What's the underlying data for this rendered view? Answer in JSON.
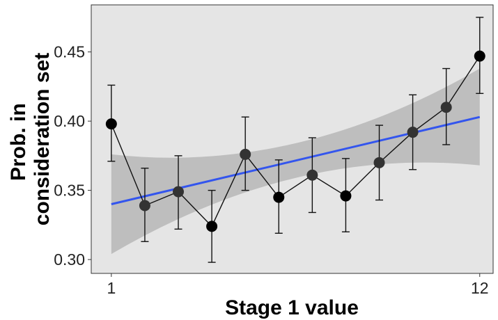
{
  "chart_data": {
    "type": "scatter",
    "title": "",
    "xlabel": "Stage 1 value",
    "ylabel_lines": [
      "Prob. in",
      "consideration set"
    ],
    "xlim": [
      0.4,
      12.4
    ],
    "ylim": [
      0.29,
      0.484
    ],
    "x_ticks": [
      {
        "value": 1,
        "label": "1"
      },
      {
        "value": 12,
        "label": "12"
      }
    ],
    "y_ticks": [
      {
        "value": 0.3,
        "label": "0.30"
      },
      {
        "value": 0.35,
        "label": "0.35"
      },
      {
        "value": 0.4,
        "label": "0.40"
      },
      {
        "value": 0.45,
        "label": "0.45"
      }
    ],
    "grid": false,
    "legend": "none",
    "series": [
      {
        "kind": "points_with_errorbars",
        "x": [
          1,
          2,
          3,
          4,
          5,
          6,
          7,
          8,
          9,
          10,
          11,
          12
        ],
        "y": [
          0.398,
          0.339,
          0.349,
          0.324,
          0.376,
          0.345,
          0.361,
          0.346,
          0.37,
          0.392,
          0.41,
          0.447
        ],
        "y_low": [
          0.371,
          0.313,
          0.322,
          0.298,
          0.35,
          0.319,
          0.334,
          0.32,
          0.343,
          0.365,
          0.383,
          0.42
        ],
        "y_high": [
          0.426,
          0.366,
          0.375,
          0.35,
          0.403,
          0.372,
          0.388,
          0.373,
          0.397,
          0.419,
          0.438,
          0.475
        ],
        "point_colors": [
          "#000000",
          "#333333",
          "#333333",
          "#000000",
          "#333333",
          "#000000",
          "#333333",
          "#000000",
          "#333333",
          "#333333",
          "#333333",
          "#000000"
        ]
      },
      {
        "kind": "linear_fit",
        "x": [
          1,
          12
        ],
        "y": [
          0.34,
          0.403
        ],
        "ci_low": [
          0.304,
          0.368
        ],
        "ci_high": [
          0.376,
          0.438
        ],
        "ci_mid_x": 6.5,
        "ci_mid_low": 0.359,
        "ci_mid_high": 0.384
      }
    ]
  },
  "colors": {
    "panel_background": "#e5e5e5",
    "ci_band": "#bebebe",
    "fit_line": "#3355ee",
    "connect_line": "#111111",
    "errorbar": "#111111"
  }
}
